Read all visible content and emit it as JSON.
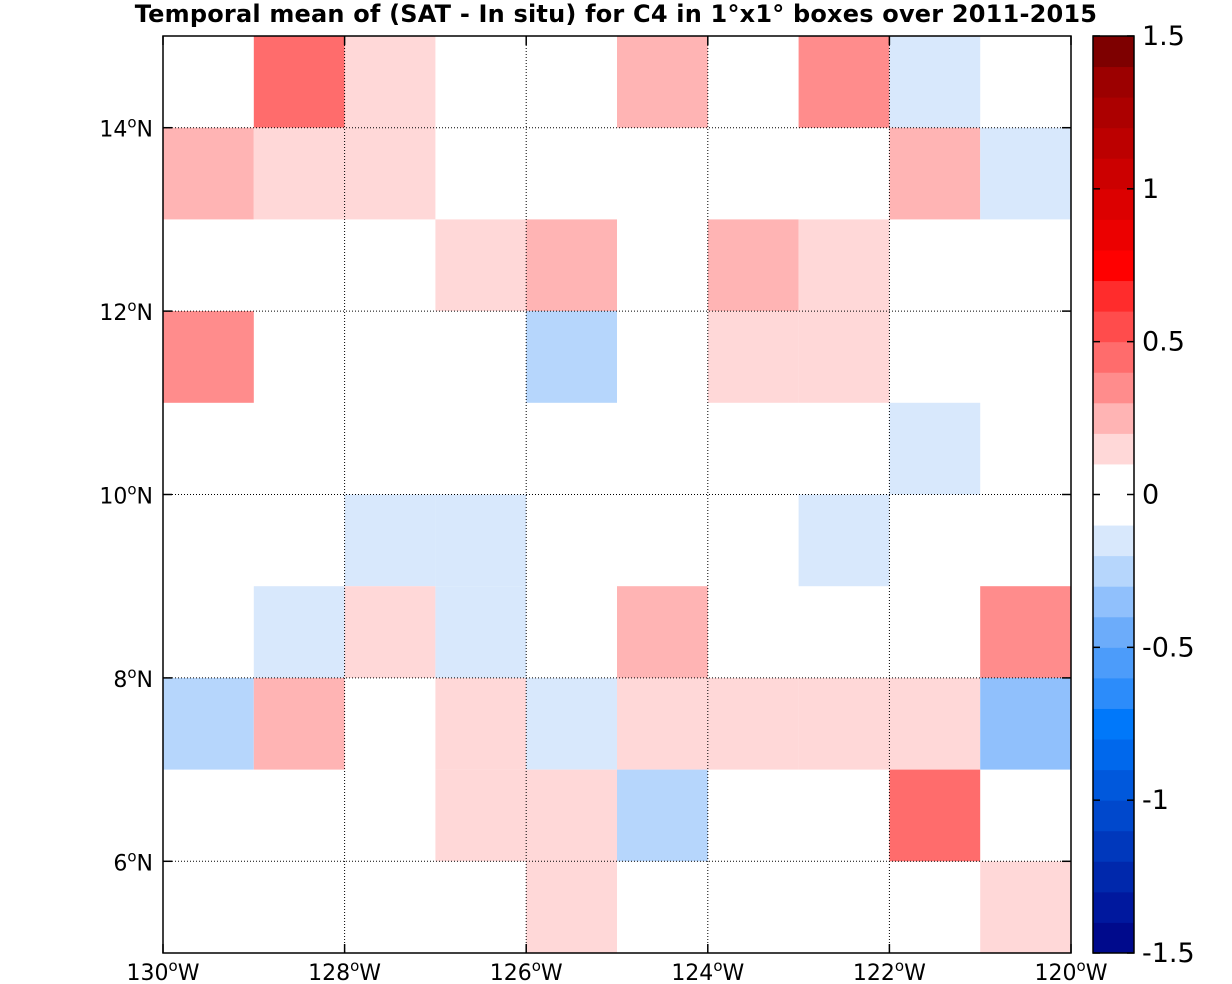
{
  "chart_data": {
    "type": "heatmap",
    "title": "Temporal mean of (SAT - In situ) for C4 in 1°x1° boxes over 2011-2015",
    "xlabel": "",
    "ylabel": "",
    "xlim": [
      -130,
      -120
    ],
    "ylim": [
      5,
      15
    ],
    "x_ticks": [
      -130,
      -128,
      -126,
      -124,
      -122,
      -120
    ],
    "x_tick_labels": [
      "130°W",
      "128°W",
      "126°W",
      "124°W",
      "122°W",
      "120°W"
    ],
    "y_ticks": [
      6,
      8,
      10,
      12,
      14
    ],
    "y_tick_labels": [
      "6°N",
      "8°N",
      "10°N",
      "12°N",
      "14°N"
    ],
    "grid": true,
    "colorbar": {
      "placement": "right",
      "range": [
        -1.5,
        1.5
      ],
      "step": 0.1,
      "ticks": [
        1.5,
        1,
        0.5,
        0,
        -0.5,
        -1,
        -1.5
      ],
      "tick_labels": [
        "1.5",
        "1",
        "0.5",
        "0",
        "-0.5",
        "-1",
        "-1.5"
      ],
      "colors_low_to_high": [
        "#000a8c",
        "#00189e",
        "#0028ac",
        "#0038bc",
        "#0048cc",
        "#0058dc",
        "#0068ec",
        "#0078fa",
        "#2c8cfa",
        "#4c9cfa",
        "#6cacfa",
        "#90c0fc",
        "#b6d6fc",
        "#d8e8fc",
        "#ffffff",
        "#ffffff",
        "#ffd8d8",
        "#ffb4b4",
        "#ff8c8c",
        "#ff6c6c",
        "#ff4c4c",
        "#ff2c2c",
        "#ff0000",
        "#ec0000",
        "#dc0000",
        "#cc0000",
        "#bc0000",
        "#ac0000",
        "#9c0000",
        "#7e0000"
      ]
    },
    "cells": [
      {
        "lon": -128.5,
        "lat": 14.5,
        "value": 0.45
      },
      {
        "lon": -127.5,
        "lat": 14.5,
        "value": 0.15
      },
      {
        "lon": -124.5,
        "lat": 14.5,
        "value": 0.25
      },
      {
        "lon": -122.5,
        "lat": 14.5,
        "value": 0.35
      },
      {
        "lon": -121.5,
        "lat": 14.5,
        "value": -0.15
      },
      {
        "lon": -129.5,
        "lat": 13.5,
        "value": 0.25
      },
      {
        "lon": -128.5,
        "lat": 13.5,
        "value": 0.15
      },
      {
        "lon": -127.5,
        "lat": 13.5,
        "value": 0.15
      },
      {
        "lon": -121.5,
        "lat": 13.5,
        "value": 0.25
      },
      {
        "lon": -120.5,
        "lat": 13.5,
        "value": -0.15
      },
      {
        "lon": -126.5,
        "lat": 12.5,
        "value": 0.15
      },
      {
        "lon": -125.5,
        "lat": 12.5,
        "value": 0.25
      },
      {
        "lon": -123.5,
        "lat": 12.5,
        "value": 0.25
      },
      {
        "lon": -122.5,
        "lat": 12.5,
        "value": 0.15
      },
      {
        "lon": -129.5,
        "lat": 11.5,
        "value": 0.35
      },
      {
        "lon": -125.5,
        "lat": 11.5,
        "value": -0.25
      },
      {
        "lon": -123.5,
        "lat": 11.5,
        "value": 0.15
      },
      {
        "lon": -122.5,
        "lat": 11.5,
        "value": 0.15
      },
      {
        "lon": -121.5,
        "lat": 10.5,
        "value": -0.15
      },
      {
        "lon": -127.5,
        "lat": 9.5,
        "value": -0.15
      },
      {
        "lon": -126.5,
        "lat": 9.5,
        "value": -0.15
      },
      {
        "lon": -122.5,
        "lat": 9.5,
        "value": -0.15
      },
      {
        "lon": -128.5,
        "lat": 8.5,
        "value": -0.15
      },
      {
        "lon": -127.5,
        "lat": 8.5,
        "value": 0.15
      },
      {
        "lon": -126.5,
        "lat": 8.5,
        "value": -0.15
      },
      {
        "lon": -124.5,
        "lat": 8.5,
        "value": 0.25
      },
      {
        "lon": -120.5,
        "lat": 8.5,
        "value": 0.35
      },
      {
        "lon": -129.5,
        "lat": 7.5,
        "value": -0.25
      },
      {
        "lon": -128.5,
        "lat": 7.5,
        "value": 0.25
      },
      {
        "lon": -126.5,
        "lat": 7.5,
        "value": 0.15
      },
      {
        "lon": -125.5,
        "lat": 7.5,
        "value": -0.15
      },
      {
        "lon": -124.5,
        "lat": 7.5,
        "value": 0.15
      },
      {
        "lon": -123.5,
        "lat": 7.5,
        "value": 0.15
      },
      {
        "lon": -122.5,
        "lat": 7.5,
        "value": 0.15
      },
      {
        "lon": -121.5,
        "lat": 7.5,
        "value": 0.15
      },
      {
        "lon": -120.5,
        "lat": 7.5,
        "value": -0.35
      },
      {
        "lon": -126.5,
        "lat": 6.5,
        "value": 0.15
      },
      {
        "lon": -125.5,
        "lat": 6.5,
        "value": 0.15
      },
      {
        "lon": -124.5,
        "lat": 6.5,
        "value": -0.25
      },
      {
        "lon": -121.5,
        "lat": 6.5,
        "value": 0.45
      },
      {
        "lon": -125.5,
        "lat": 5.5,
        "value": 0.15
      },
      {
        "lon": -120.5,
        "lat": 5.5,
        "value": 0.15
      }
    ]
  }
}
